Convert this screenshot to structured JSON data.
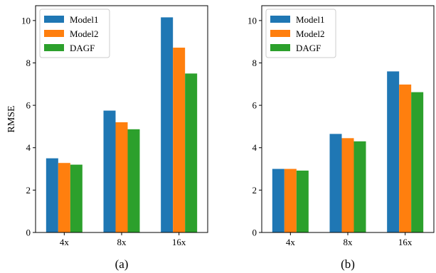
{
  "colors": {
    "Model1": "#1f77b4",
    "Model2": "#ff7f0e",
    "DAGF": "#2ca02c"
  },
  "chart_data": [
    {
      "type": "bar",
      "panel_label": "(a)",
      "categories": [
        "4x",
        "8x",
        "16x"
      ],
      "series": [
        {
          "name": "Model1",
          "values": [
            3.5,
            5.75,
            10.15
          ]
        },
        {
          "name": "Model2",
          "values": [
            3.28,
            5.2,
            8.72
          ]
        },
        {
          "name": "DAGF",
          "values": [
            3.2,
            4.87,
            7.5
          ]
        }
      ],
      "ylabel": "RMSE",
      "ylim": [
        0,
        10.7
      ],
      "yticks": [
        0,
        2,
        4,
        6,
        8,
        10
      ],
      "legend": "top-left",
      "grid": false
    },
    {
      "type": "bar",
      "panel_label": "(b)",
      "categories": [
        "4x",
        "8x",
        "16x"
      ],
      "series": [
        {
          "name": "Model1",
          "values": [
            3.0,
            4.65,
            7.6
          ]
        },
        {
          "name": "Model2",
          "values": [
            3.0,
            4.45,
            6.98
          ]
        },
        {
          "name": "DAGF",
          "values": [
            2.92,
            4.3,
            6.62
          ]
        }
      ],
      "ylabel": "",
      "ylim": [
        0,
        10.7
      ],
      "yticks": [
        0,
        2,
        4,
        6,
        8,
        10
      ],
      "legend": "top-left",
      "grid": false
    }
  ]
}
